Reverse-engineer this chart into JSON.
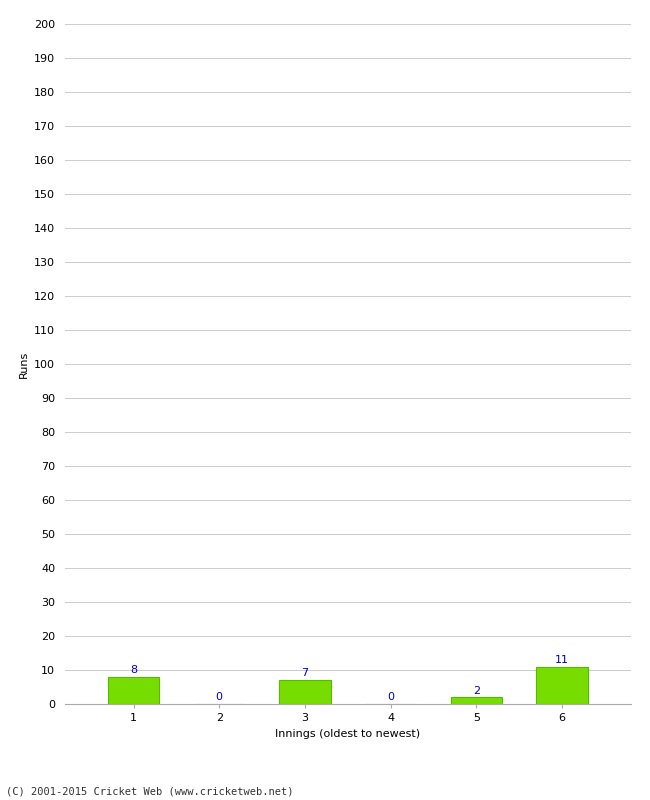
{
  "categories": [
    1,
    2,
    3,
    4,
    5,
    6
  ],
  "values": [
    8,
    0,
    7,
    0,
    2,
    11
  ],
  "bar_color": "#77dd00",
  "bar_edge_color": "#55bb00",
  "ylabel": "Runs",
  "xlabel": "Innings (oldest to newest)",
  "ylim": [
    0,
    200
  ],
  "yticks": [
    0,
    10,
    20,
    30,
    40,
    50,
    60,
    70,
    80,
    90,
    100,
    110,
    120,
    130,
    140,
    150,
    160,
    170,
    180,
    190,
    200
  ],
  "label_color": "#0000cc",
  "footer": "(C) 2001-2015 Cricket Web (www.cricketweb.net)",
  "background_color": "#ffffff",
  "grid_color": "#cccccc"
}
